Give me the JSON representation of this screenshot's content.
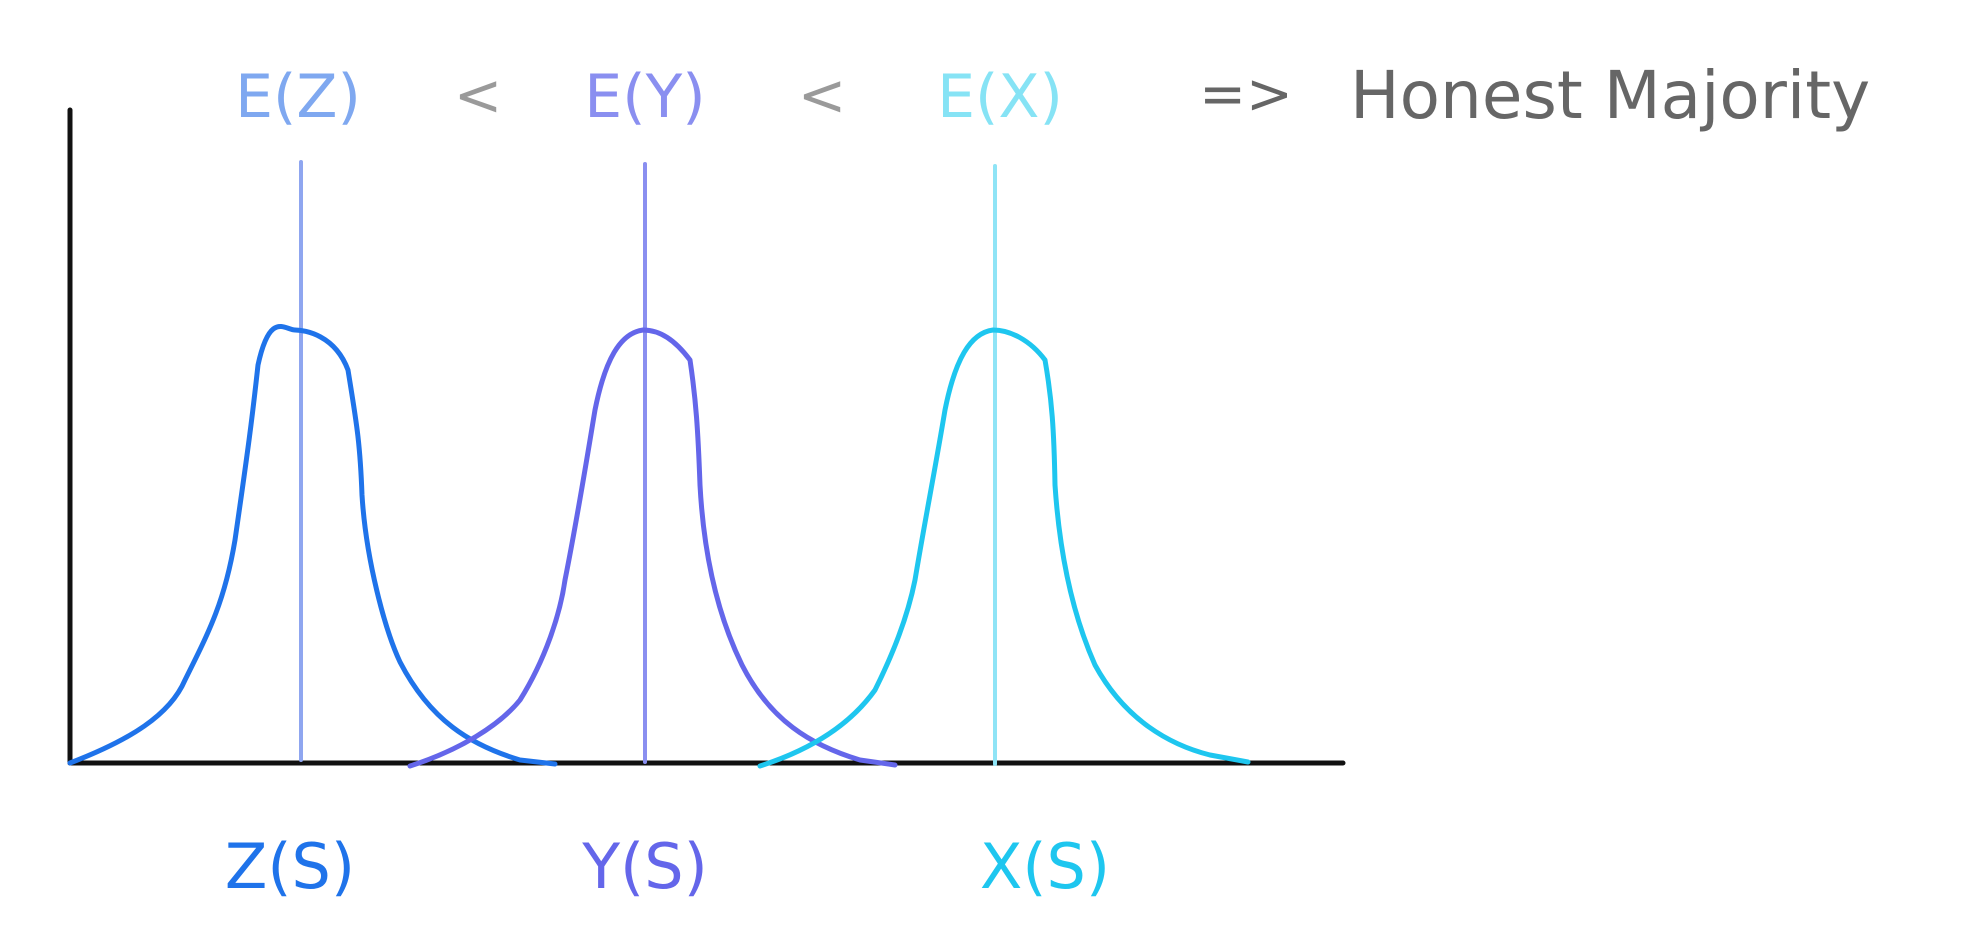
{
  "header": {
    "segments": [
      {
        "key": "ez",
        "text": "E(Z)",
        "color": "#7fa8f0"
      },
      {
        "key": "lt1",
        "text": "<",
        "color": "#9a9a9a"
      },
      {
        "key": "ey",
        "text": "E(Y)",
        "color": "#8a8ff0"
      },
      {
        "key": "lt2",
        "text": "<",
        "color": "#9a9a9a"
      },
      {
        "key": "ex",
        "text": "E(X)",
        "color": "#86e3f5"
      },
      {
        "key": "implies",
        "text": "=>",
        "color": "#666666"
      },
      {
        "key": "conclusion",
        "text": "Honest Majority",
        "color": "#666666"
      }
    ]
  },
  "distributions": [
    {
      "name": "z-distribution",
      "label": "Z(S)",
      "curve_color": "#1f73ea",
      "mean_color": "#8fa6f0",
      "label_color": "#1f73ea"
    },
    {
      "name": "y-distribution",
      "label": "Y(S)",
      "curve_color": "#6466ea",
      "mean_color": "#8a8ff0",
      "label_color": "#6466ea"
    },
    {
      "name": "x-distribution",
      "label": "X(S)",
      "curve_color": "#1ec6ef",
      "mean_color": "#8fe4f6",
      "label_color": "#1ec6ef"
    }
  ],
  "colors": {
    "axis": "#111111",
    "background": "#ffffff"
  }
}
